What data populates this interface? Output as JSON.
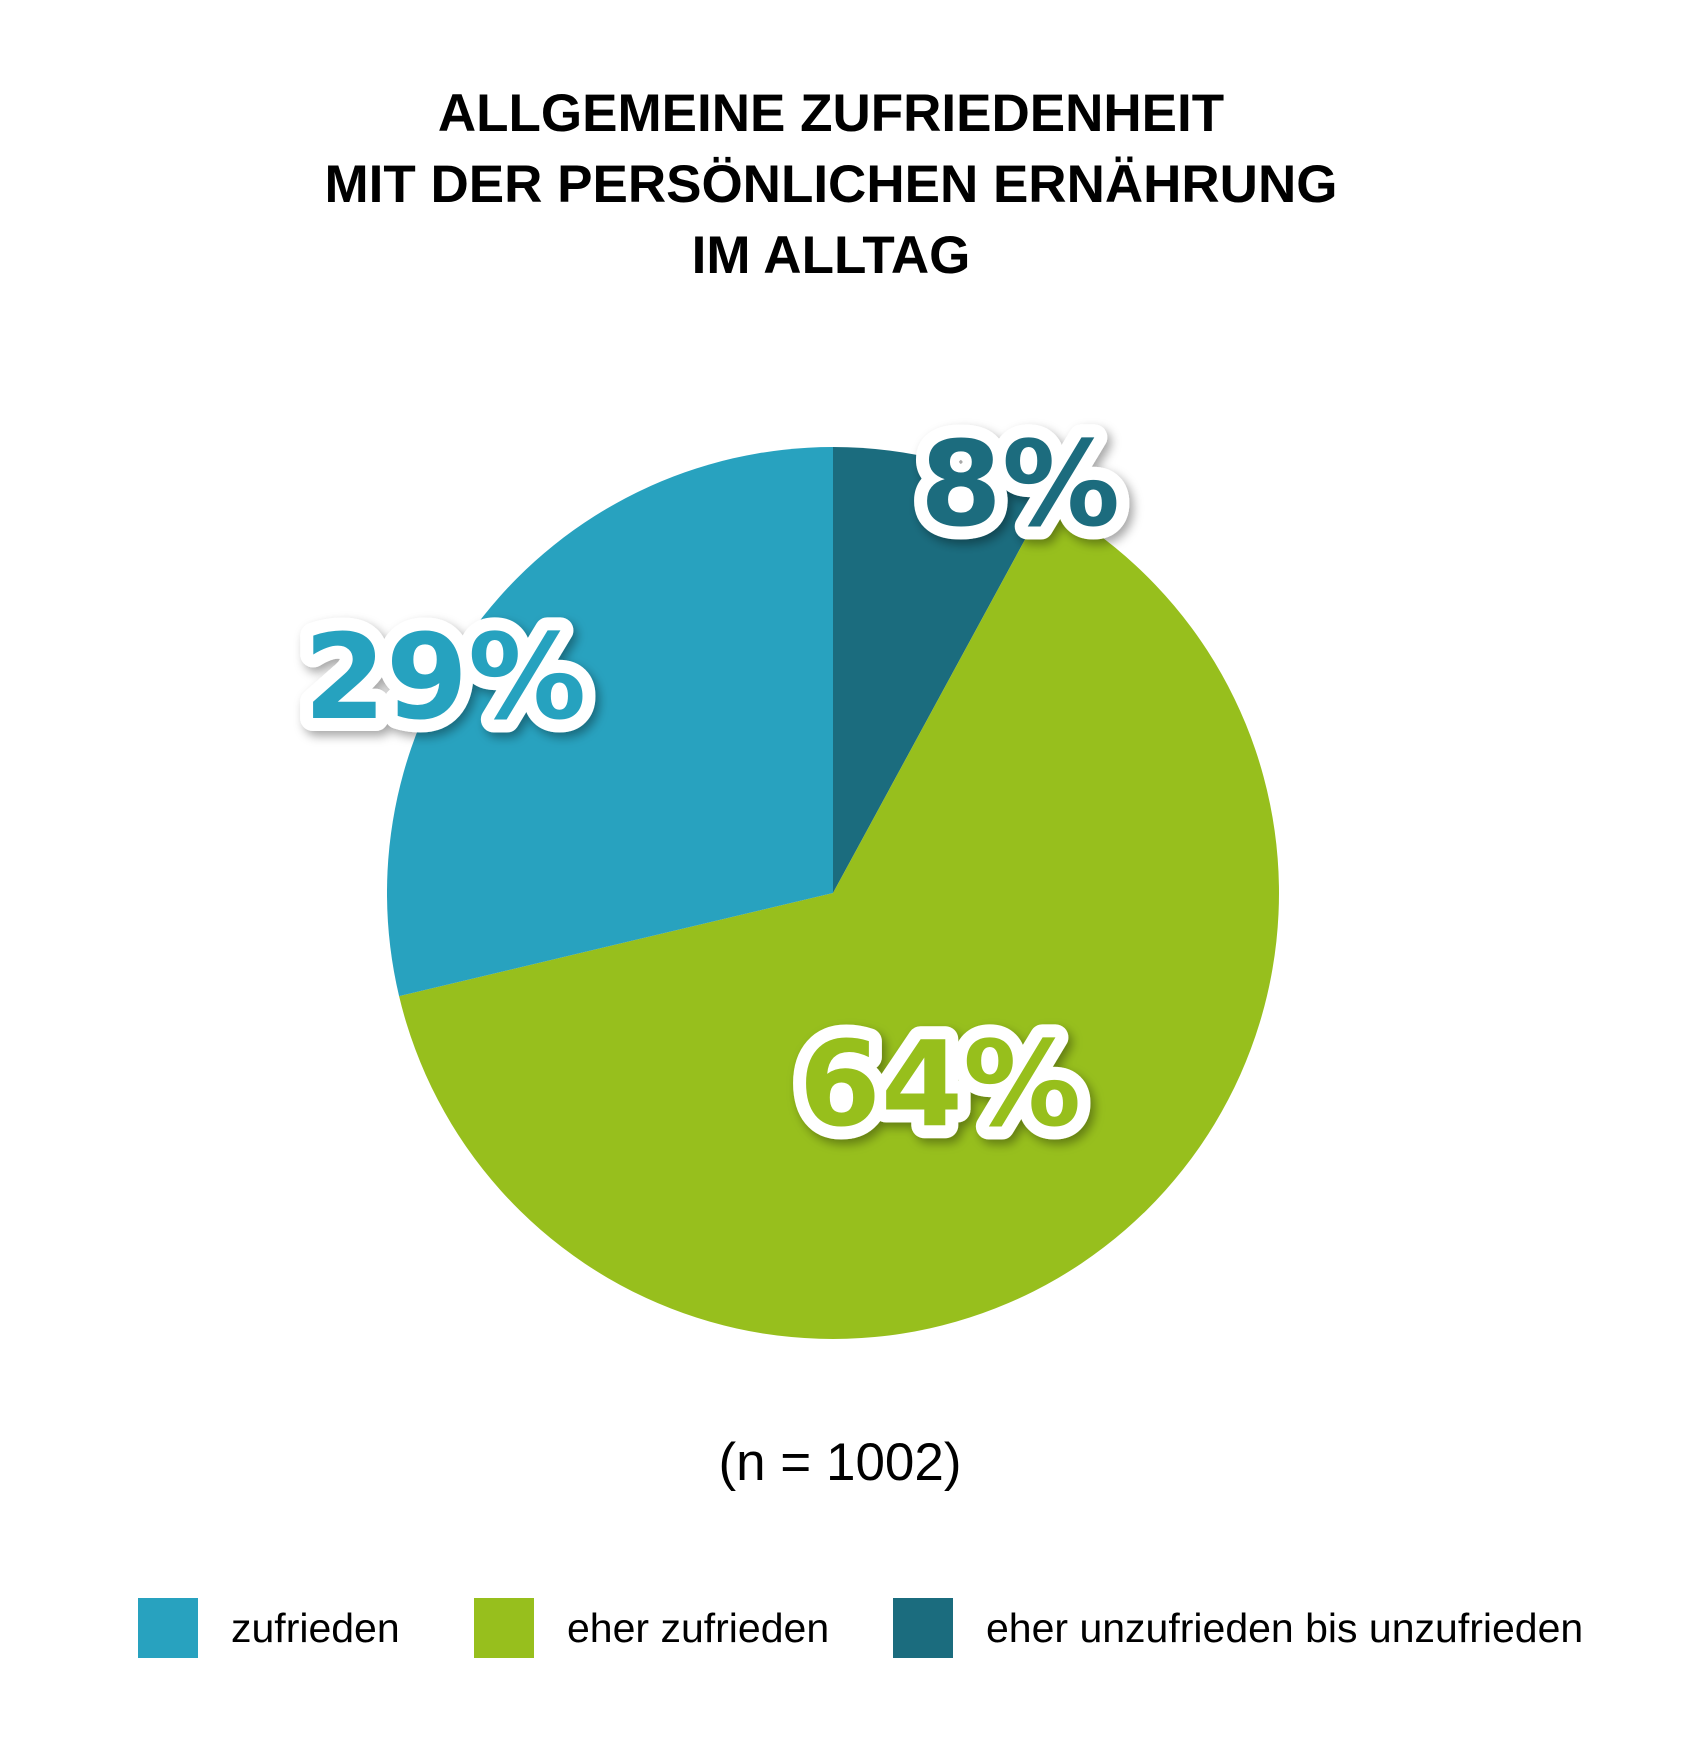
{
  "chart_data": {
    "type": "pie",
    "title_lines": [
      "ALLGEMEINE ZUFRIEDENHEIT",
      "MIT DER PERSÖNLICHEN ERNÄHRUNG",
      "IM ALLTAG"
    ],
    "slices": [
      {
        "name": "eher unzufrieden bis unzufrieden",
        "value": 8,
        "label": "8%",
        "color": "#1b6c7e"
      },
      {
        "name": "eher zufrieden",
        "value": 64,
        "label": "64%",
        "color": "#97bf1d"
      },
      {
        "name": "zufrieden",
        "value": 29,
        "label": "29%",
        "color": "#28a2bf"
      }
    ],
    "start_angle_deg": 0,
    "direction": "clockwise",
    "note": "(n = 1002)",
    "legend": {
      "position": "bottom",
      "items": [
        {
          "label": "zufrieden",
          "color": "#28a2bf"
        },
        {
          "label": "eher zufrieden",
          "color": "#97bf1d"
        },
        {
          "label": "eher unzufrieden bis unzufrieden",
          "color": "#1b6c7e"
        }
      ]
    }
  }
}
